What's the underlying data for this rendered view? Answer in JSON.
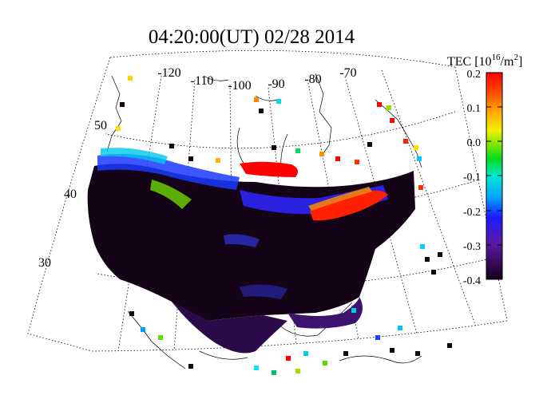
{
  "title": "04:20:00(UT)  02/28 2014",
  "colorbar": {
    "label_prefix": "TEC [10",
    "label_exp": "16",
    "label_mid": "/m",
    "label_exp2": "2",
    "label_suffix": "]",
    "min": -0.4,
    "max": 0.2,
    "ticks": [
      "0.2",
      "0.1",
      "0.0",
      "-0.1",
      "-0.2",
      "-0.3",
      "-0.4"
    ]
  },
  "map": {
    "longitude_labels": [
      "-120",
      "-110",
      "-100",
      "-90",
      "-80",
      "-70"
    ],
    "latitude_labels": [
      "50",
      "40",
      "30"
    ]
  },
  "colors": {
    "background": "#ffffff",
    "low": "#140014",
    "high": "#ff0000"
  }
}
